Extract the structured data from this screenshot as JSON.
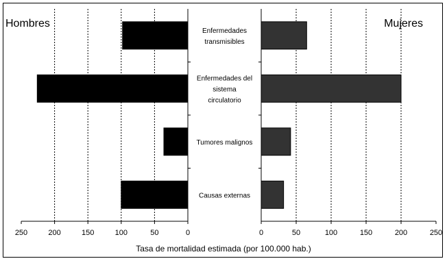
{
  "chart_data": {
    "type": "bar",
    "orientation": "horizontal",
    "layout": "population-pyramid",
    "categories": [
      [
        "Enfermedades",
        "transmisibles"
      ],
      [
        "Enfermedades del",
        "sistema",
        "circulatorio"
      ],
      [
        "Tumores malignos"
      ],
      [
        "Causas externas"
      ]
    ],
    "series": [
      {
        "name": "Hombres",
        "values": [
          98,
          226,
          36,
          100
        ],
        "color": "#000000",
        "direction": "left"
      },
      {
        "name": "Mujeres",
        "values": [
          65,
          200,
          42,
          32
        ],
        "color": "#333333",
        "direction": "right"
      }
    ],
    "xlim": [
      0,
      250
    ],
    "xticks": [
      250,
      200,
      150,
      100,
      50,
      0
    ],
    "xticks_right": [
      0,
      50,
      100,
      150,
      200,
      250
    ],
    "xlabel": "Tasa de mortalidad estimada (por 100.000 hab.)",
    "grid": "vertical dashed",
    "grid_color": "#000000"
  }
}
